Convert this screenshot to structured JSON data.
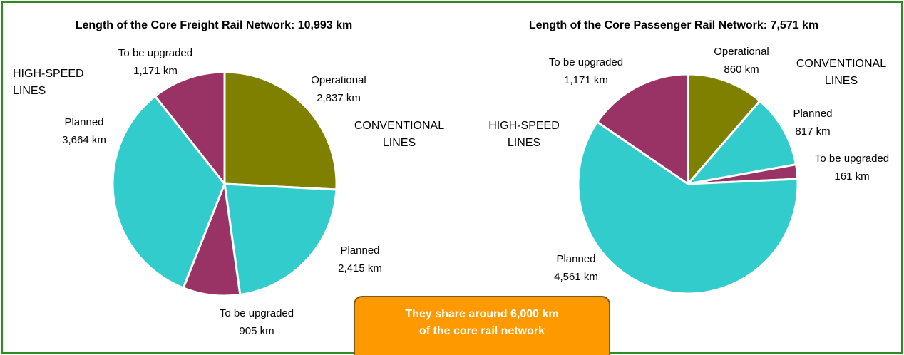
{
  "chart_data": [
    {
      "type": "pie",
      "title": "Length of the Core Freight Rail Network: 10,993 km",
      "categories": [
        "Operational",
        "Planned",
        "To be upgraded",
        "Planned",
        "To be upgraded"
      ],
      "values": [
        2837,
        2415,
        905,
        3664,
        1171
      ],
      "value_labels": [
        "2,837 km",
        "2,415 km",
        "905 km",
        "3,664 km",
        "1,171 km"
      ],
      "colors": [
        "#808000",
        "#33cccc",
        "#993366",
        "#33cccc",
        "#993366"
      ],
      "annotations": [
        {
          "text": "HIGH-SPEED LINES"
        },
        {
          "text": "CONVENTIONAL LINES"
        }
      ]
    },
    {
      "type": "pie",
      "title": "Length of the Core Passenger Rail Network: 7,571 km",
      "categories": [
        "Operational",
        "Planned",
        "To be upgraded",
        "Planned",
        "To be upgraded"
      ],
      "values": [
        860,
        817,
        161,
        4561,
        1171
      ],
      "value_labels": [
        "860 km",
        "817 km",
        "161 km",
        "4,561 km",
        "1,171 km"
      ],
      "colors": [
        "#808000",
        "#33cccc",
        "#993366",
        "#33cccc",
        "#993366"
      ],
      "annotations": [
        {
          "text": "HIGH-SPEED LINES"
        },
        {
          "text": "CONVENTIONAL LINES"
        }
      ]
    }
  ],
  "callout": {
    "text": "They share around 6,000 km of the core rail network"
  }
}
